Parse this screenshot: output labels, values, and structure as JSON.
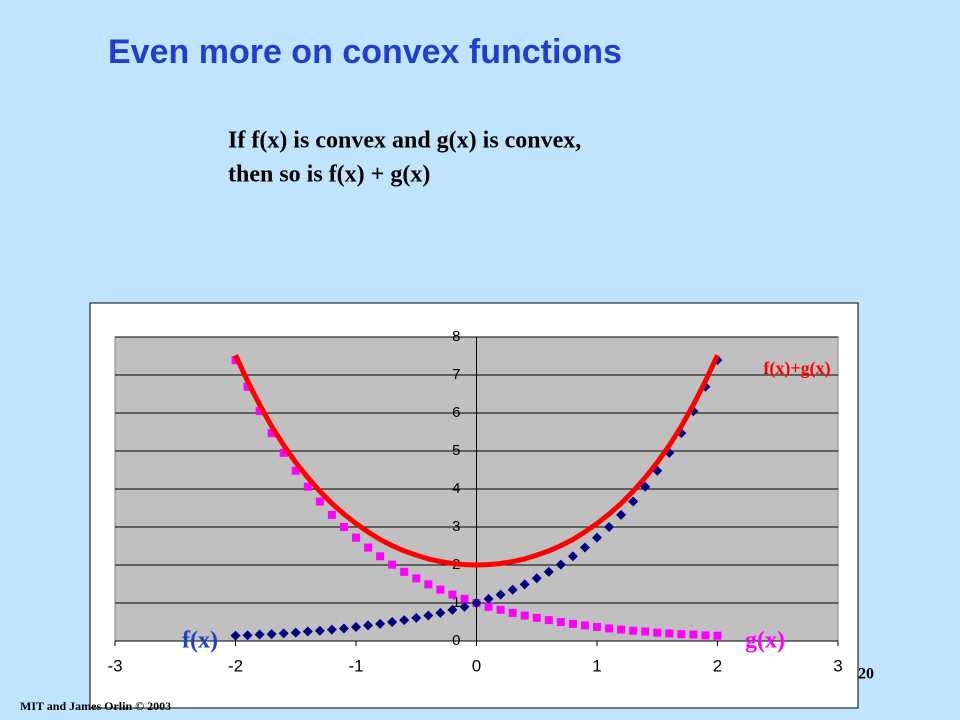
{
  "title": "Even more on convex functions",
  "statement": [
    "If f(x) is convex and g(x) is convex,",
    "then so is f(x) + g(x)"
  ],
  "page_number": "20",
  "footer": "MIT and James Orlin © 2003",
  "chart_data": {
    "type": "line",
    "x": [
      -2,
      -1.9,
      -1.8,
      -1.7,
      -1.6,
      -1.5,
      -1.4,
      -1.3,
      -1.2,
      -1.1,
      -1,
      -0.9,
      -0.8,
      -0.7,
      -0.6,
      -0.5,
      -0.4,
      -0.3,
      -0.2,
      -0.1,
      0,
      0.1,
      0.2,
      0.3,
      0.4,
      0.5,
      0.6,
      0.7,
      0.8,
      0.9,
      1,
      1.1,
      1.2,
      1.3,
      1.4,
      1.5,
      1.6,
      1.7,
      1.8,
      1.9,
      2
    ],
    "series": [
      {
        "name": "f(x)",
        "color": "#000080",
        "marker": "diamond",
        "values": [
          0.14,
          0.15,
          0.17,
          0.18,
          0.2,
          0.22,
          0.25,
          0.27,
          0.3,
          0.33,
          0.37,
          0.41,
          0.45,
          0.5,
          0.55,
          0.61,
          0.67,
          0.74,
          0.82,
          0.9,
          1.0,
          1.11,
          1.22,
          1.35,
          1.49,
          1.65,
          1.82,
          2.01,
          2.23,
          2.46,
          2.72,
          3.0,
          3.32,
          3.67,
          4.06,
          4.48,
          4.95,
          5.47,
          6.05,
          6.69,
          7.39
        ]
      },
      {
        "name": "g(x)",
        "color": "#ff00ff",
        "marker": "square",
        "values": [
          7.39,
          6.69,
          6.05,
          5.47,
          4.95,
          4.48,
          4.06,
          3.67,
          3.32,
          3.0,
          2.72,
          2.46,
          2.23,
          2.01,
          1.82,
          1.65,
          1.49,
          1.35,
          1.22,
          1.11,
          1.0,
          0.9,
          0.82,
          0.74,
          0.67,
          0.61,
          0.55,
          0.5,
          0.45,
          0.41,
          0.37,
          0.33,
          0.3,
          0.27,
          0.25,
          0.22,
          0.2,
          0.18,
          0.17,
          0.15,
          0.14
        ]
      },
      {
        "name": "f(x)+g(x)",
        "color": "#ff0000",
        "marker": "none",
        "values": [
          7.52,
          6.84,
          6.22,
          5.65,
          5.15,
          4.7,
          4.3,
          3.94,
          3.62,
          3.34,
          3.09,
          2.87,
          2.67,
          2.51,
          2.37,
          2.26,
          2.16,
          2.09,
          2.04,
          2.01,
          2.0,
          2.01,
          2.04,
          2.09,
          2.16,
          2.26,
          2.37,
          2.51,
          2.67,
          2.87,
          3.09,
          3.34,
          3.62,
          3.94,
          4.3,
          4.7,
          5.15,
          5.65,
          6.22,
          6.84,
          7.52
        ]
      }
    ],
    "xlim": [
      -3,
      3
    ],
    "xticks": [
      -3,
      -2,
      -1,
      0,
      1,
      2,
      3
    ],
    "ylim": [
      0,
      8
    ],
    "yticks": [
      0,
      1,
      2,
      3,
      4,
      5,
      6,
      7,
      8
    ],
    "grid": true
  }
}
